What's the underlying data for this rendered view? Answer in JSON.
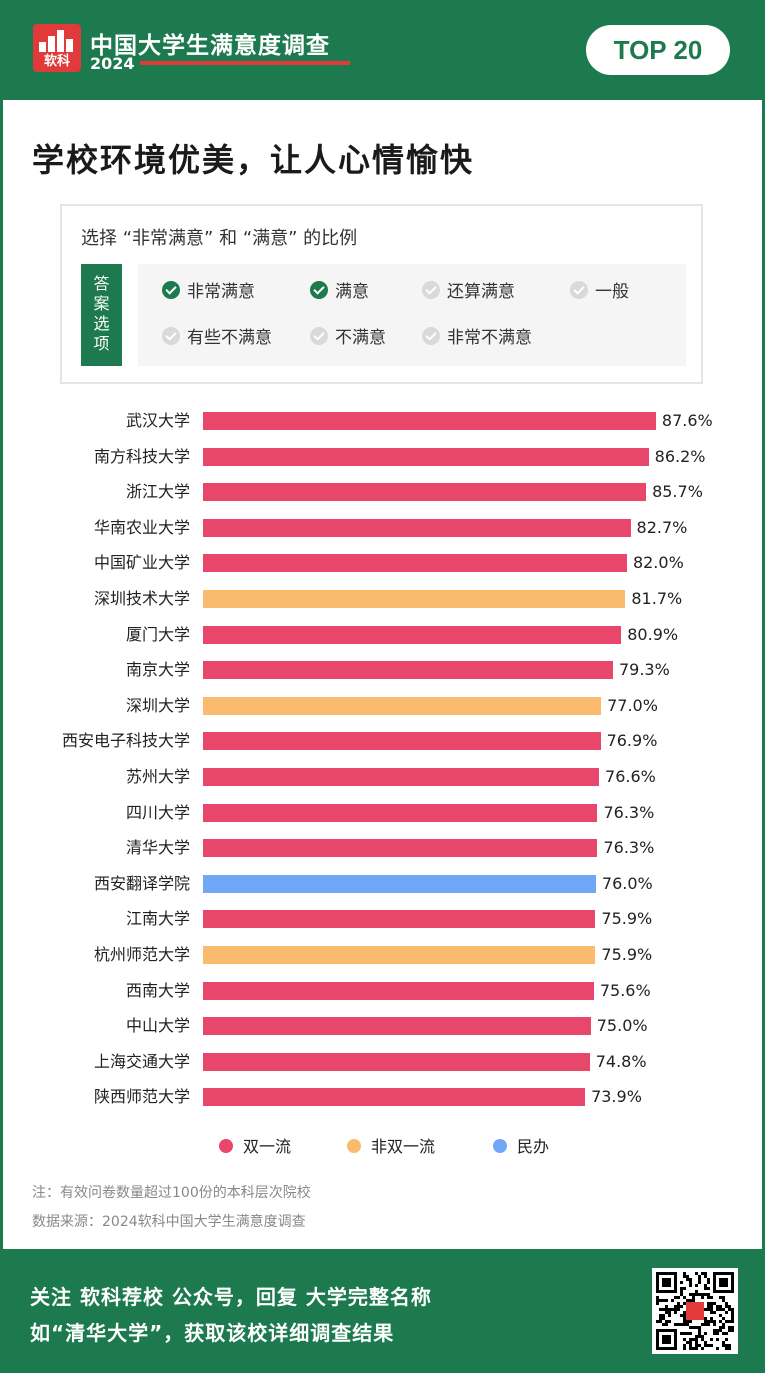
{
  "header": {
    "logo_text": "软科",
    "title": "中国大学生满意度调查",
    "year": "2024",
    "badge": "TOP 20"
  },
  "main": {
    "title": "学校环境优美，让人心情愉快"
  },
  "filter": {
    "title": "选择 “非常满意” 和 “满意” 的比例",
    "answer_label": [
      "答",
      "案",
      "选",
      "项"
    ],
    "options": [
      {
        "label": "非常满意",
        "checked": true
      },
      {
        "label": "满意",
        "checked": true
      },
      {
        "label": "还算满意",
        "checked": false
      },
      {
        "label": "一般",
        "checked": false
      },
      {
        "label": "有些不满意",
        "checked": false
      },
      {
        "label": "不满意",
        "checked": false
      },
      {
        "label": "非常不满意",
        "checked": false
      }
    ]
  },
  "chart_data": {
    "type": "bar",
    "orientation": "horizontal",
    "categories": [
      "武汉大学",
      "南方科技大学",
      "浙江大学",
      "华南农业大学",
      "中国矿业大学",
      "深圳技术大学",
      "厦门大学",
      "南京大学",
      "深圳大学",
      "西安电子科技大学",
      "苏州大学",
      "四川大学",
      "清华大学",
      "西安翻译学院",
      "江南大学",
      "杭州师范大学",
      "西南大学",
      "中山大学",
      "上海交通大学",
      "陕西师范大学"
    ],
    "values": [
      87.6,
      86.2,
      85.7,
      82.7,
      82.0,
      81.7,
      80.9,
      79.3,
      77.0,
      76.9,
      76.6,
      76.3,
      76.3,
      76.0,
      75.9,
      75.9,
      75.6,
      75.0,
      74.8,
      73.9
    ],
    "value_labels": [
      "87.6%",
      "86.2%",
      "85.7%",
      "82.7%",
      "82.0%",
      "81.7%",
      "80.9%",
      "79.3%",
      "77.0%",
      "76.9%",
      "76.6%",
      "76.3%",
      "76.3%",
      "76.0%",
      "75.9%",
      "75.9%",
      "75.6%",
      "75.0%",
      "74.8%",
      "73.9%"
    ],
    "groups": [
      "双一流",
      "双一流",
      "双一流",
      "双一流",
      "双一流",
      "非双一流",
      "双一流",
      "双一流",
      "非双一流",
      "双一流",
      "双一流",
      "双一流",
      "双一流",
      "民办",
      "双一流",
      "非双一流",
      "双一流",
      "双一流",
      "双一流",
      "双一流"
    ],
    "legend": [
      {
        "name": "双一流",
        "color": "#e8476b"
      },
      {
        "name": "非双一流",
        "color": "#fbbb6e"
      },
      {
        "name": "民办",
        "color": "#6fa6f5"
      }
    ],
    "legend_position": "bottom",
    "grid": false,
    "title": "",
    "xlabel": "",
    "ylabel": ""
  },
  "notes": {
    "note": "注：有效问卷数量超过100份的本科层次院校",
    "source": "数据来源：2024软科中国大学生满意度调查"
  },
  "footer": {
    "line1": "关注 软科荐校 公众号，回复 大学完整名称",
    "line2": "如“清华大学”，获取该校详细调查结果"
  },
  "colors": {
    "brand_green": "#1d7a4e",
    "brand_red": "#e03a3a"
  },
  "icons": {
    "check": "check-circle-icon",
    "qr": "qr-code-icon"
  }
}
